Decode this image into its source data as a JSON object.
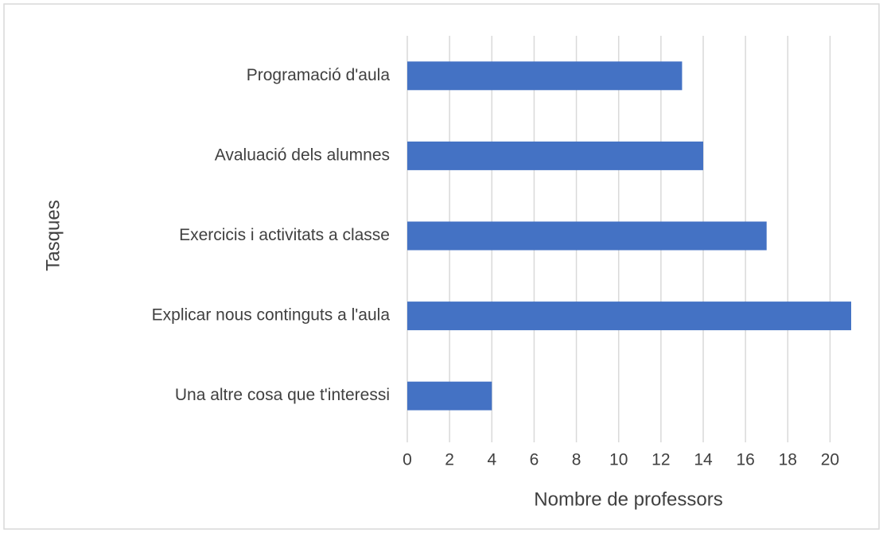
{
  "chart_data": {
    "type": "bar",
    "orientation": "horizontal",
    "x_axis_label": "Nombre de professors",
    "y_axis_label": "Tasques",
    "categories": [
      "Programació d'aula",
      "Avaluació dels alumnes",
      "Exercicis i activitats a classe",
      "Explicar nous continguts a l'aula",
      "Una altre cosa que t'interessi"
    ],
    "values": [
      13,
      14,
      17,
      21,
      4
    ],
    "color": "#4472c4",
    "xlim": [
      0,
      21
    ],
    "xticks": [
      0,
      2,
      4,
      6,
      8,
      10,
      12,
      14,
      16,
      18,
      20
    ],
    "grid": true
  }
}
